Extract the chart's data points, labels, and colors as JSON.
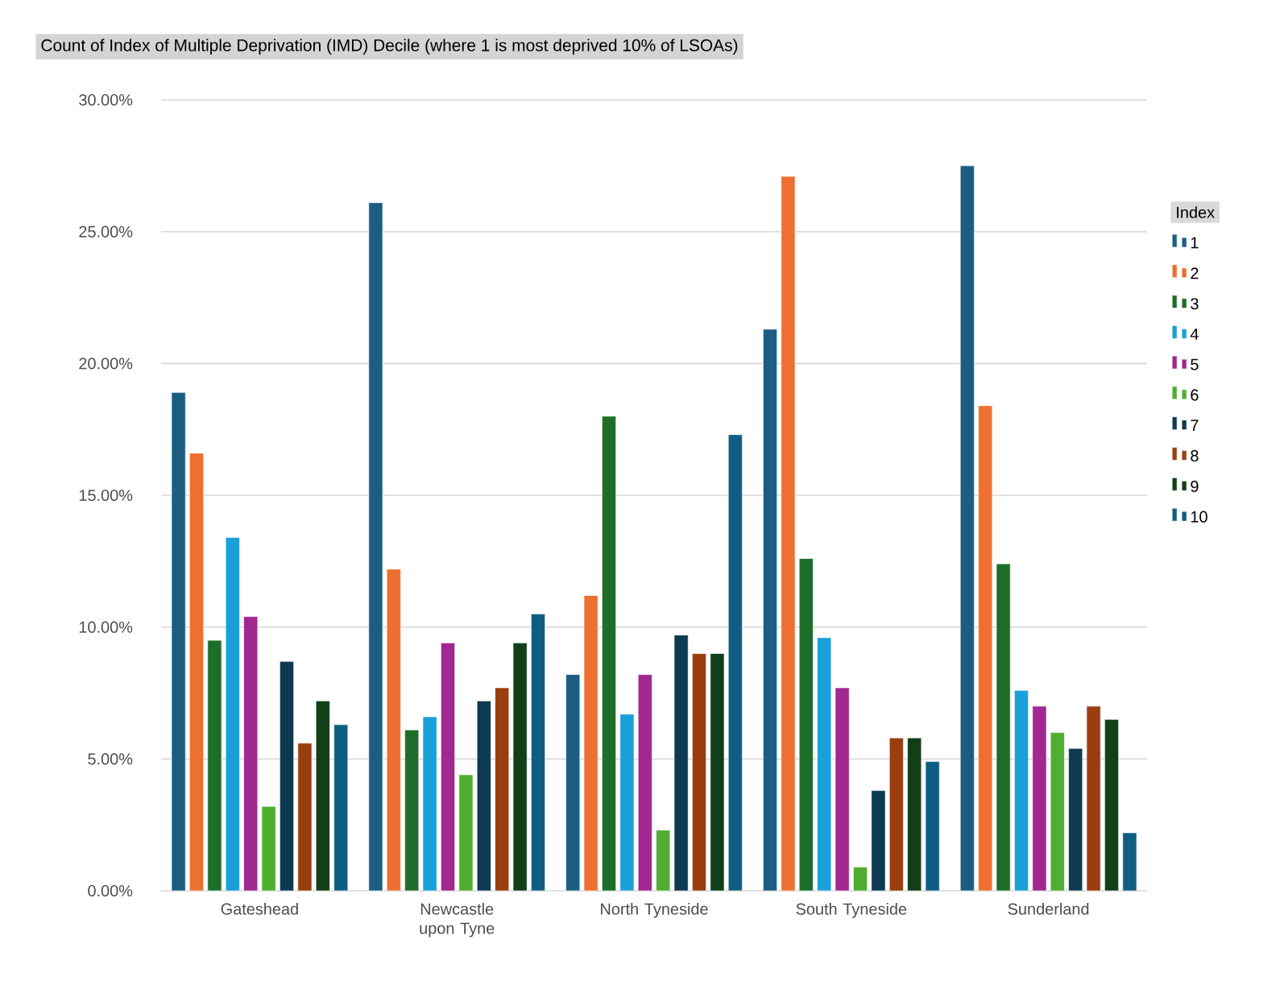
{
  "chart_data": {
    "type": "bar",
    "title": "Count of Index of Multiple Deprivation (IMD) Decile (where 1 is most deprived 10% of LSOAs)",
    "legend_title": "Index",
    "categories": [
      "Gateshead",
      "Newcastle upon Tyne",
      "North Tyneside",
      "South Tyneside",
      "Sunderland"
    ],
    "series": [
      {
        "name": "1",
        "color": "#1b5e82",
        "values": [
          18.9,
          26.1,
          8.2,
          21.3,
          27.5
        ]
      },
      {
        "name": "2",
        "color": "#ed7030",
        "values": [
          16.6,
          12.2,
          11.2,
          27.1,
          18.4
        ]
      },
      {
        "name": "3",
        "color": "#1e6e2a",
        "values": [
          9.5,
          6.1,
          18.0,
          12.6,
          12.4
        ]
      },
      {
        "name": "4",
        "color": "#1aa0d8",
        "values": [
          13.4,
          6.6,
          6.7,
          9.6,
          7.6
        ]
      },
      {
        "name": "5",
        "color": "#a0288f",
        "values": [
          10.4,
          9.4,
          8.2,
          7.7,
          7.0
        ]
      },
      {
        "name": "6",
        "color": "#4fae30",
        "values": [
          3.2,
          4.4,
          2.3,
          0.9,
          6.0
        ]
      },
      {
        "name": "7",
        "color": "#0d3a50",
        "values": [
          8.7,
          7.2,
          9.7,
          3.8,
          5.4
        ]
      },
      {
        "name": "8",
        "color": "#9a3e10",
        "values": [
          5.6,
          7.7,
          9.0,
          5.8,
          7.0
        ]
      },
      {
        "name": "9",
        "color": "#123f18",
        "values": [
          7.2,
          9.4,
          9.0,
          5.8,
          6.5
        ]
      },
      {
        "name": "10",
        "color": "#0f5e82",
        "values": [
          6.3,
          10.5,
          17.3,
          4.9,
          2.2
        ]
      }
    ],
    "ylim": [
      0,
      30
    ],
    "yticks": [
      {
        "value": 0,
        "label": "0.00%"
      },
      {
        "value": 5,
        "label": "5.00%"
      },
      {
        "value": 10,
        "label": "10.00%"
      },
      {
        "value": 15,
        "label": "15.00%"
      },
      {
        "value": 20,
        "label": "20.00%"
      },
      {
        "value": 25,
        "label": "25.00%"
      },
      {
        "value": 30,
        "label": "30.00%"
      }
    ],
    "grid": "y",
    "legend": "right"
  }
}
